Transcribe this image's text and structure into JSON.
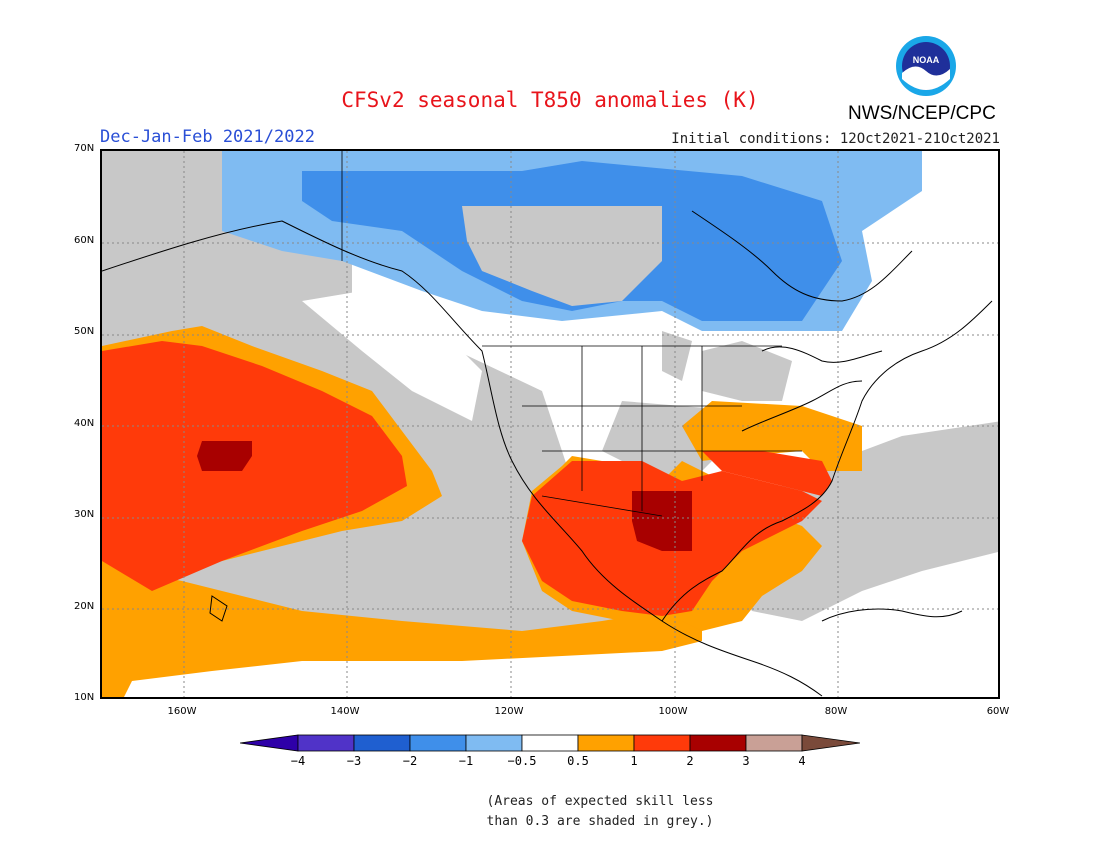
{
  "header": {
    "title": "CFSv2 seasonal T850 anomalies (K)",
    "season": "Dec-Jan-Feb 2021/2022",
    "initial_conditions": "Initial conditions: 12Oct2021-21Oct2021",
    "agency": "NWS/NCEP/CPC",
    "logo_text": "NOAA"
  },
  "map": {
    "lat_labels": [
      "70N",
      "60N",
      "50N",
      "40N",
      "30N",
      "20N",
      "10N"
    ],
    "lon_labels": [
      "160W",
      "140W",
      "120W",
      "100W",
      "80W",
      "60W"
    ],
    "grey_meaning": "low skill",
    "regions": [
      {
        "name": "north-pacific-warm",
        "category": "1 to 2"
      },
      {
        "name": "hawaii-core",
        "category": "2 to 3"
      },
      {
        "name": "subtropical-pacific-warm",
        "category": "0.5 to 1"
      },
      {
        "name": "canada-cold",
        "category": "-2 to -1"
      },
      {
        "name": "southern-us-warm",
        "category": "1 to 2"
      },
      {
        "name": "texas-core",
        "category": "2 to 3"
      },
      {
        "name": "southeast-us-warm",
        "category": "1 to 2"
      }
    ]
  },
  "colorbar": {
    "labels": [
      "−4",
      "−3",
      "−2",
      "−1",
      "−0.5",
      "0.5",
      "1",
      "2",
      "3",
      "4"
    ],
    "colors": [
      "#2e00a8",
      "#5033c8",
      "#1f5fd0",
      "#3f8fea",
      "#7fbbf2",
      "#ffffff",
      "#ffa100",
      "#ff3a0a",
      "#a80000",
      "#c9a096",
      "#7a4a3a"
    ]
  },
  "note": {
    "line1": "(Areas of expected skill less",
    "line2": "than 0.3 are shaded in grey.)"
  }
}
